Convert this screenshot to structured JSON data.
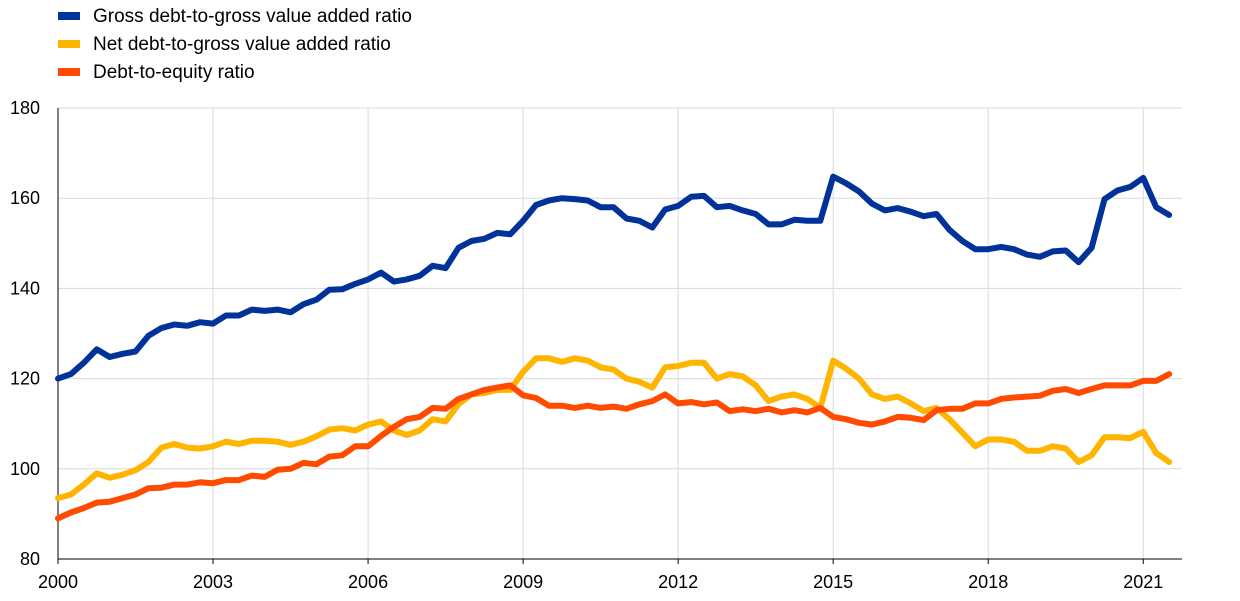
{
  "chart_data": {
    "type": "line",
    "title": "",
    "xlabel": "",
    "ylabel": "",
    "ylim": [
      80,
      180
    ],
    "yticks": [
      80,
      100,
      120,
      140,
      160,
      180
    ],
    "xlim": [
      2000.0,
      2021.75
    ],
    "xticks": [
      {
        "value": 2000,
        "label": "2000"
      },
      {
        "value": 2003,
        "label": "2003"
      },
      {
        "value": 2006,
        "label": "2006"
      },
      {
        "value": 2009,
        "label": "2009"
      },
      {
        "value": 2012,
        "label": "2012"
      },
      {
        "value": 2015,
        "label": "2015"
      },
      {
        "value": 2018,
        "label": "2018"
      },
      {
        "value": 2021,
        "label": "2021"
      }
    ],
    "grid": "vertical and horizontal",
    "legend_position": "top-left",
    "x": [
      2000.0,
      2000.25,
      2000.5,
      2000.75,
      2001.0,
      2001.25,
      2001.5,
      2001.75,
      2002.0,
      2002.25,
      2002.5,
      2002.75,
      2003.0,
      2003.25,
      2003.5,
      2003.75,
      2004.0,
      2004.25,
      2004.5,
      2004.75,
      2005.0,
      2005.25,
      2005.5,
      2005.75,
      2006.0,
      2006.25,
      2006.5,
      2006.75,
      2007.0,
      2007.25,
      2007.5,
      2007.75,
      2008.0,
      2008.25,
      2008.5,
      2008.75,
      2009.0,
      2009.25,
      2009.5,
      2009.75,
      2010.0,
      2010.25,
      2010.5,
      2010.75,
      2011.0,
      2011.25,
      2011.5,
      2011.75,
      2012.0,
      2012.25,
      2012.5,
      2012.75,
      2013.0,
      2013.25,
      2013.5,
      2013.75,
      2014.0,
      2014.25,
      2014.5,
      2014.75,
      2015.0,
      2015.25,
      2015.5,
      2015.75,
      2016.0,
      2016.25,
      2016.5,
      2016.75,
      2017.0,
      2017.25,
      2017.5,
      2017.75,
      2018.0,
      2018.25,
      2018.5,
      2018.75,
      2019.0,
      2019.25,
      2019.5,
      2019.75,
      2020.0,
      2020.25,
      2020.5,
      2020.75,
      2021.0,
      2021.25,
      2021.5
    ],
    "series": [
      {
        "name": "Gross debt-to-gross value added ratio",
        "color": "#003299",
        "values": [
          120,
          121,
          123.5,
          126.5,
          124.8,
          125.5,
          126,
          129.5,
          131.2,
          132,
          131.7,
          132.5,
          132.2,
          134,
          134,
          135.3,
          135,
          135.3,
          134.7,
          136.5,
          137.5,
          139.7,
          139.8,
          141,
          142,
          143.5,
          141.5,
          142,
          142.8,
          145,
          144.5,
          149,
          150.5,
          151,
          152.3,
          152,
          155,
          158.5,
          159.5,
          160,
          159.8,
          159.5,
          158,
          158,
          155.5,
          155,
          153.5,
          157.5,
          158.3,
          160.3,
          160.5,
          158,
          158.3,
          157.3,
          156.5,
          154.2,
          154.2,
          155.2,
          155,
          155,
          164.8,
          163.3,
          161.5,
          158.8,
          157.3,
          157.8,
          157,
          156,
          156.5,
          153,
          150.5,
          148.7,
          148.7,
          149.2,
          148.7,
          147.5,
          147,
          148.2,
          148.4,
          145.8,
          149,
          159.8,
          161.7,
          162.5,
          164.5,
          158,
          156.3
        ]
      },
      {
        "name": "Net debt-to-gross value added ratio",
        "color": "#ffb400",
        "values": [
          93.5,
          94.3,
          96.5,
          99,
          98,
          98.7,
          99.7,
          101.5,
          104.7,
          105.5,
          104.7,
          104.5,
          105,
          106,
          105.5,
          106.2,
          106.2,
          106,
          105.3,
          106,
          107.2,
          108.7,
          109,
          108.5,
          109.8,
          110.5,
          108.5,
          107.5,
          108.5,
          111,
          110.5,
          114.3,
          116.5,
          116.8,
          117.5,
          117.5,
          121.5,
          124.5,
          124.5,
          123.7,
          124.5,
          124,
          122.5,
          122,
          120,
          119.3,
          118,
          122.5,
          122.8,
          123.5,
          123.5,
          120,
          121,
          120.5,
          118.5,
          115,
          116,
          116.5,
          115.5,
          113.5,
          124,
          122.2,
          120,
          116.5,
          115.5,
          116,
          114.5,
          112.8,
          113.5,
          111,
          108,
          105,
          106.5,
          106.5,
          106,
          104,
          104,
          105,
          104.5,
          101.5,
          103,
          107,
          107,
          106.8,
          108.2,
          103.5,
          101.5
        ]
      },
      {
        "name": "Debt-to-equity ratio",
        "color": "#ff4b00",
        "values": [
          89,
          90.3,
          91.3,
          92.5,
          92.7,
          93.5,
          94.3,
          95.7,
          95.8,
          96.5,
          96.5,
          97,
          96.8,
          97.5,
          97.5,
          98.5,
          98.2,
          99.8,
          100,
          101.3,
          101,
          102.7,
          103,
          105,
          105,
          107.3,
          109.3,
          111,
          111.5,
          113.5,
          113.3,
          115.5,
          116.5,
          117.5,
          118,
          118.5,
          116.3,
          115.7,
          114,
          114,
          113.5,
          114,
          113.5,
          113.8,
          113.3,
          114.3,
          115,
          116.5,
          114.5,
          114.8,
          114.3,
          114.7,
          112.8,
          113.2,
          112.8,
          113.3,
          112.5,
          113,
          112.5,
          113.5,
          111.5,
          111,
          110.2,
          109.8,
          110.5,
          111.5,
          111.3,
          110.8,
          113,
          113.3,
          113.3,
          114.5,
          114.5,
          115.5,
          115.8,
          116,
          116.2,
          117.3,
          117.7,
          116.8,
          117.7,
          118.5,
          118.5,
          118.5,
          119.5,
          119.5,
          121
        ]
      }
    ]
  }
}
